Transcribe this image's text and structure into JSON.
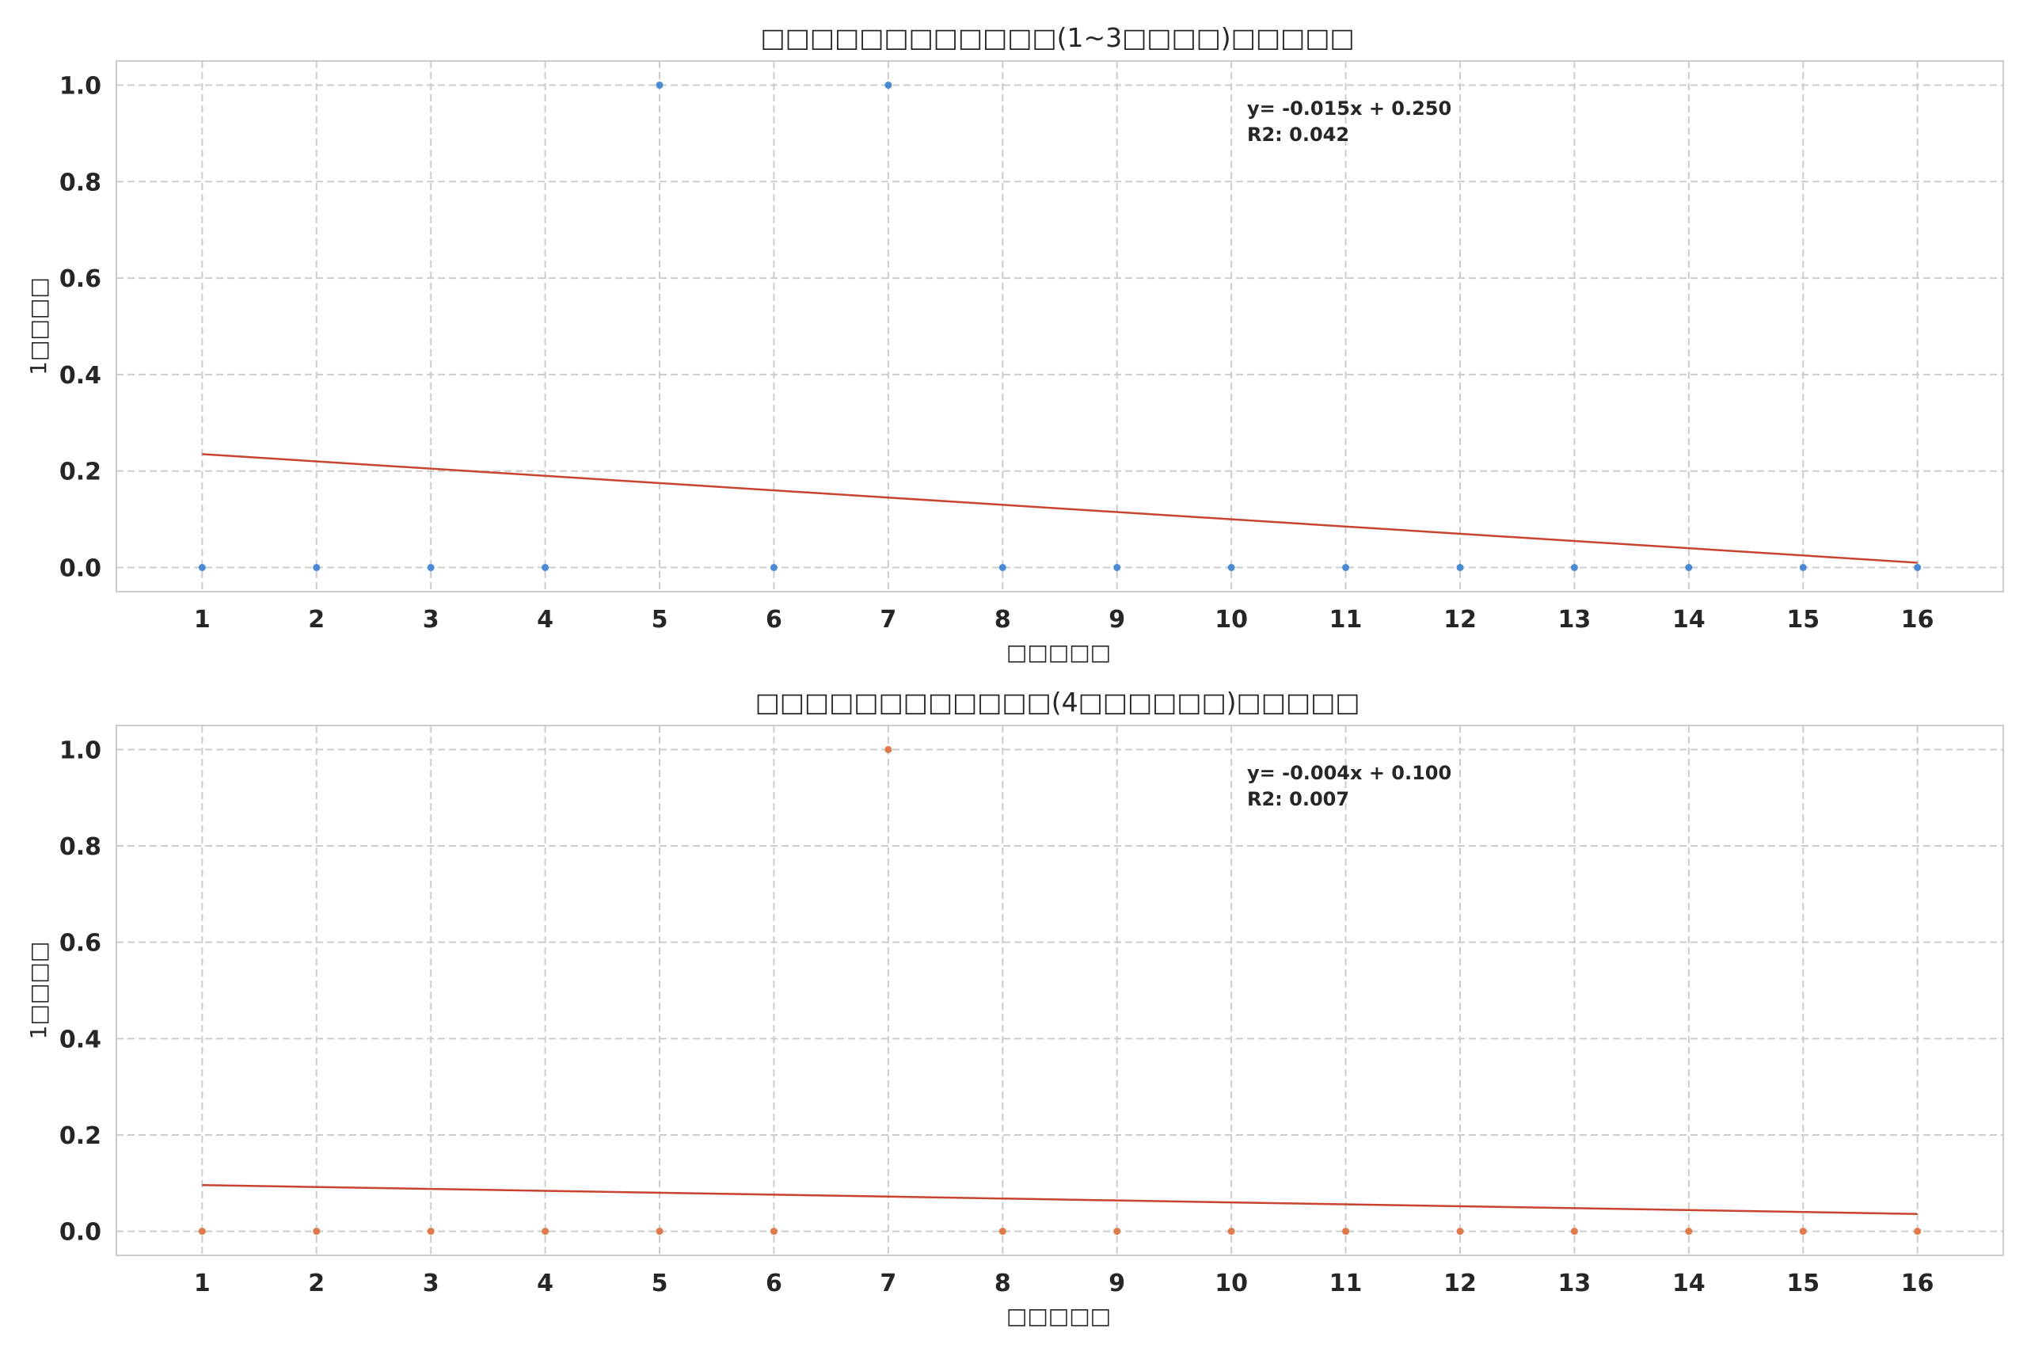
{
  "chart_data": [
    {
      "type": "scatter",
      "title": "□□□□□□□□□□□□(1~3□□□□)□□□□□",
      "xlabel": "□□□□□",
      "ylabel": "1□□□□",
      "x": [
        1,
        2,
        3,
        4,
        5,
        6,
        7,
        8,
        9,
        10,
        11,
        12,
        13,
        14,
        15,
        16
      ],
      "y": [
        0,
        0,
        0,
        0,
        1,
        0,
        1,
        0,
        0,
        0,
        0,
        0,
        0,
        0,
        0,
        0
      ],
      "xlim": [
        0.25,
        16.75
      ],
      "ylim": [
        -0.05,
        1.05
      ],
      "xticks": [
        "1",
        "2",
        "3",
        "4",
        "5",
        "6",
        "7",
        "8",
        "9",
        "10",
        "11",
        "12",
        "13",
        "14",
        "15",
        "16"
      ],
      "yticks": [
        "0.0",
        "0.2",
        "0.4",
        "0.6",
        "0.8",
        "1.0"
      ],
      "trendline": {
        "slope": -0.015,
        "intercept": 0.25,
        "x_range": [
          1,
          16
        ]
      },
      "annotation": [
        "y= -0.015x + 0.250",
        "R2: 0.042"
      ],
      "point_color": "#4a8ad4",
      "line_color": "#c8442f",
      "grid": true
    },
    {
      "type": "scatter",
      "title": "□□□□□□□□□□□□(4□□□□□□)□□□□□",
      "xlabel": "□□□□□",
      "ylabel": "1□□□□",
      "x": [
        1,
        2,
        3,
        4,
        5,
        6,
        7,
        8,
        9,
        10,
        11,
        12,
        13,
        14,
        15,
        16
      ],
      "y": [
        0,
        0,
        0,
        0,
        0,
        0,
        1,
        0,
        0,
        0,
        0,
        0,
        0,
        0,
        0,
        0
      ],
      "xlim": [
        0.25,
        16.75
      ],
      "ylim": [
        -0.05,
        1.05
      ],
      "xticks": [
        "1",
        "2",
        "3",
        "4",
        "5",
        "6",
        "7",
        "8",
        "9",
        "10",
        "11",
        "12",
        "13",
        "14",
        "15",
        "16"
      ],
      "yticks": [
        "0.0",
        "0.2",
        "0.4",
        "0.6",
        "0.8",
        "1.0"
      ],
      "trendline": {
        "slope": -0.004,
        "intercept": 0.1,
        "x_range": [
          1,
          16
        ]
      },
      "annotation": [
        "y= -0.004x + 0.100",
        "R2: 0.007"
      ],
      "point_color": "#e07a4a",
      "line_color": "#c8442f",
      "grid": true
    }
  ]
}
